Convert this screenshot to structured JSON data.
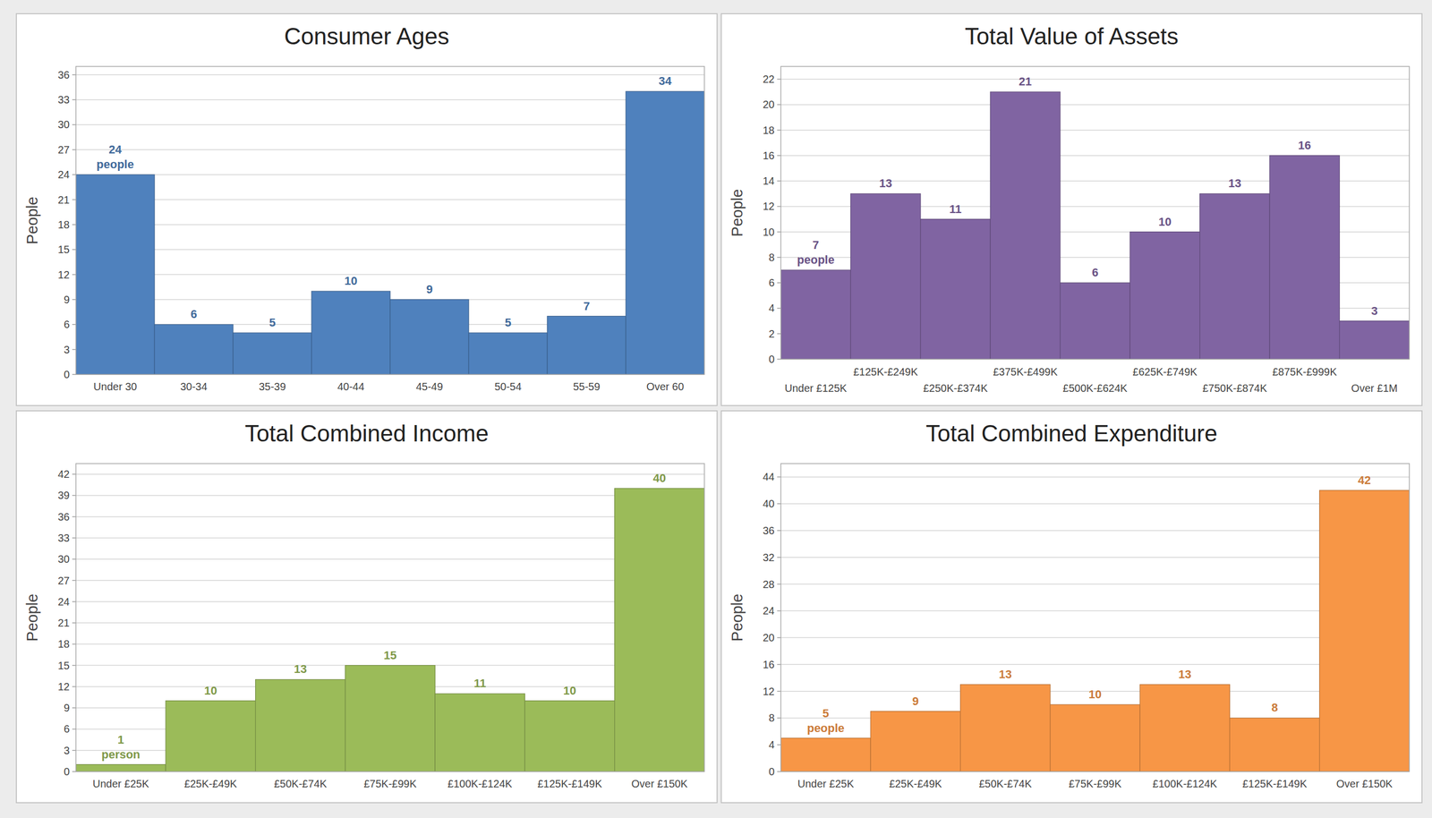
{
  "chart_data": [
    {
      "type": "bar",
      "title": "Consumer Ages",
      "ylabel": "People",
      "categories": [
        "Under 30",
        "30-34",
        "35-39",
        "40-44",
        "45-49",
        "50-54",
        "55-59",
        "Over 60"
      ],
      "values": [
        24,
        6,
        5,
        10,
        9,
        5,
        7,
        34
      ],
      "value_labels": [
        "24 people",
        "6",
        "5",
        "10",
        "9",
        "5",
        "7",
        "34"
      ],
      "color": "#4f81bd",
      "ylim": [
        0,
        37
      ],
      "yticks": [
        0,
        3,
        6,
        9,
        12,
        15,
        18,
        21,
        24,
        27,
        30,
        33,
        36
      ],
      "grid": true,
      "data_labels": true
    },
    {
      "type": "bar",
      "title": "Total Value of Assets",
      "ylabel": "People",
      "categories": [
        "Under £125K",
        "£125K-£249K",
        "£250K-£374K",
        "£375K-£499K",
        "£500K-£624K",
        "£625K-£749K",
        "£750K-£874K",
        "£875K-£999K",
        "Over £1M"
      ],
      "values": [
        7,
        13,
        11,
        21,
        6,
        10,
        13,
        16,
        3
      ],
      "value_labels": [
        "7 people",
        "13",
        "11",
        "21",
        "6",
        "10",
        "13",
        "16",
        "3"
      ],
      "color": "#8064a2",
      "ylim": [
        0,
        23
      ],
      "yticks": [
        0,
        2,
        4,
        6,
        8,
        10,
        12,
        14,
        16,
        18,
        20,
        22
      ],
      "grid": true,
      "data_labels": true
    },
    {
      "type": "bar",
      "title": "Total Combined Income",
      "ylabel": "People",
      "categories": [
        "Under £25K",
        "£25K-£49K",
        "£50K-£74K",
        "£75K-£99K",
        "£100K-£124K",
        "£125K-£149K",
        "Over £150K"
      ],
      "values": [
        1,
        10,
        13,
        15,
        11,
        10,
        40
      ],
      "value_labels": [
        "1 person",
        "10",
        "13",
        "15",
        "11",
        "10",
        "40"
      ],
      "color": "#9bbb59",
      "ylim": [
        0,
        43.5
      ],
      "yticks": [
        0,
        3,
        6,
        9,
        12,
        15,
        18,
        21,
        24,
        27,
        30,
        33,
        36,
        39,
        42
      ],
      "grid": true,
      "data_labels": true
    },
    {
      "type": "bar",
      "title": "Total Combined Expenditure",
      "ylabel": "People",
      "categories": [
        "Under £25K",
        "£25K-£49K",
        "£50K-£74K",
        "£75K-£99K",
        "£100K-£124K",
        "£125K-£149K",
        "Over £150K"
      ],
      "values": [
        5,
        9,
        13,
        10,
        13,
        8,
        42
      ],
      "value_labels": [
        "5 people",
        "9",
        "13",
        "10",
        "13",
        "8",
        "42"
      ],
      "color": "#f79646",
      "ylim": [
        0,
        46
      ],
      "yticks": [
        0,
        4,
        8,
        12,
        16,
        20,
        24,
        28,
        32,
        36,
        40,
        44
      ],
      "grid": true,
      "data_labels": true
    }
  ]
}
